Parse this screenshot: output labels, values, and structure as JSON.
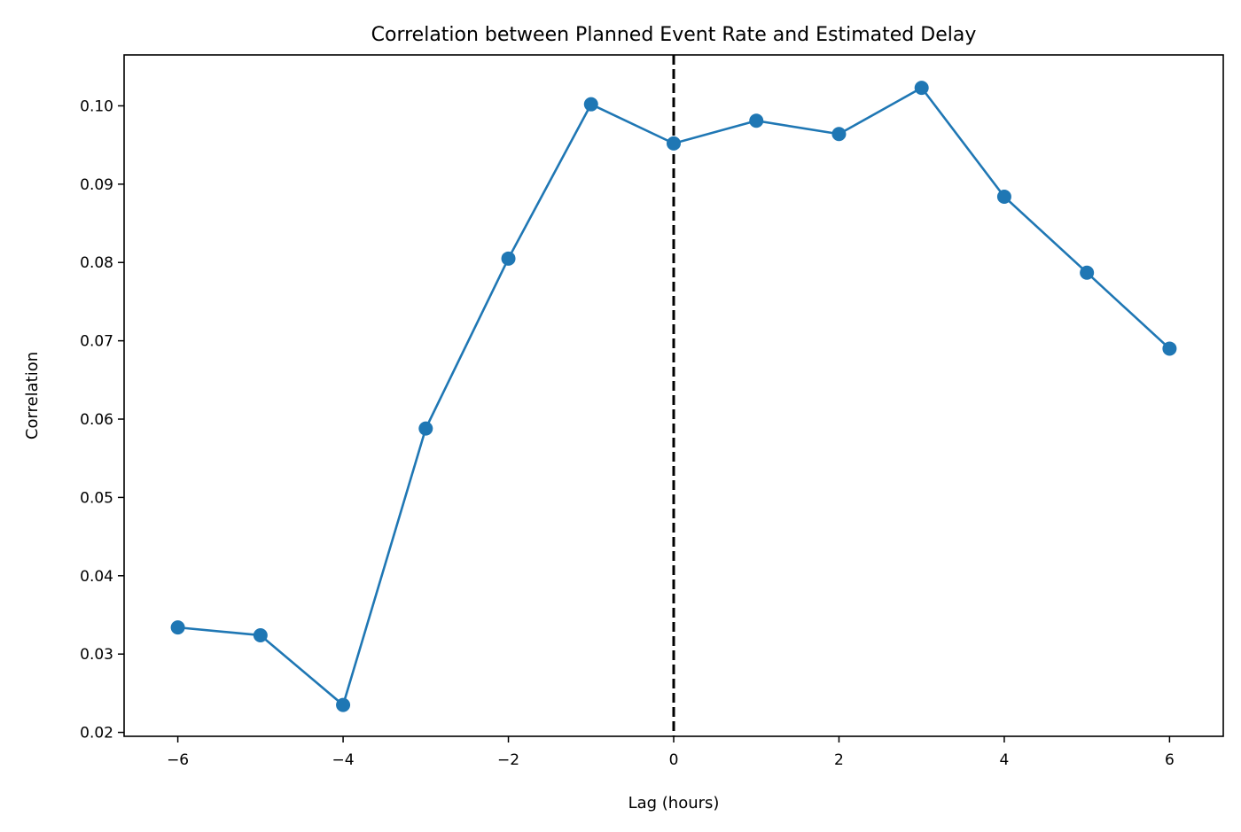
{
  "chart_data": {
    "type": "line",
    "title": "Correlation between Planned Event Rate and Estimated Delay",
    "xlabel": "Lag (hours)",
    "ylabel": "Correlation",
    "xlim": [
      -6.65,
      6.65
    ],
    "ylim": [
      0.0195,
      0.1065
    ],
    "x_ticks": [
      -6,
      -4,
      -2,
      0,
      2,
      4,
      6
    ],
    "x_tick_labels": [
      "−6",
      "−4",
      "−2",
      "0",
      "2",
      "4",
      "6"
    ],
    "y_ticks": [
      0.02,
      0.03,
      0.04,
      0.05,
      0.06,
      0.07,
      0.08,
      0.09,
      0.1
    ],
    "y_tick_labels": [
      "0.02",
      "0.03",
      "0.04",
      "0.05",
      "0.06",
      "0.07",
      "0.08",
      "0.09",
      "0.10"
    ],
    "grid": false,
    "series": [
      {
        "x": [
          -6,
          -5,
          -4,
          -3,
          -2,
          -1,
          0,
          1,
          2,
          3,
          4,
          5,
          6
        ],
        "values": [
          0.0334,
          0.0324,
          0.0235,
          0.0588,
          0.0805,
          0.1002,
          0.0952,
          0.0981,
          0.0964,
          0.1023,
          0.0884,
          0.0787,
          0.069
        ],
        "color": "#1f77b4",
        "marker": "circle"
      }
    ],
    "reference_lines": [
      {
        "orientation": "vertical",
        "x": 0,
        "style": "dashed",
        "color": "#000000"
      }
    ]
  }
}
